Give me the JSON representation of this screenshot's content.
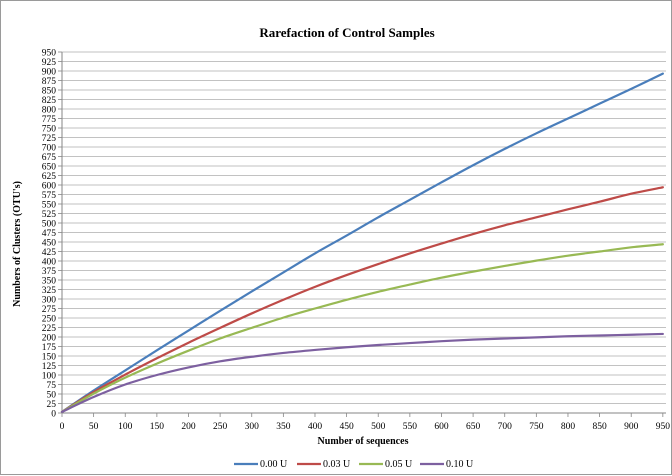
{
  "chart_data": {
    "type": "line",
    "title": "Rarefaction of Control Samples",
    "xlabel": "Number of sequences",
    "ylabel": "Numbers of Clusters (OTU's)",
    "xlim": [
      0,
      955
    ],
    "ylim": [
      0,
      950
    ],
    "x_ticks": [
      0,
      50,
      100,
      150,
      200,
      250,
      300,
      350,
      400,
      450,
      500,
      550,
      600,
      650,
      700,
      750,
      800,
      850,
      900,
      950
    ],
    "y_ticks": [
      0,
      25,
      50,
      75,
      100,
      125,
      150,
      175,
      200,
      225,
      250,
      275,
      300,
      325,
      350,
      375,
      400,
      425,
      450,
      475,
      500,
      525,
      550,
      575,
      600,
      625,
      650,
      675,
      700,
      725,
      750,
      775,
      800,
      825,
      850,
      875,
      900,
      925,
      950
    ],
    "grid": "horizontal",
    "legend_position": "bottom",
    "x": [
      0,
      50,
      100,
      150,
      200,
      250,
      300,
      350,
      400,
      450,
      500,
      550,
      600,
      650,
      700,
      750,
      800,
      850,
      900,
      950
    ],
    "series": [
      {
        "name": "0.00 U",
        "color": "#4a7ebb",
        "values": [
          3,
          59,
          112,
          165,
          217,
          269,
          320,
          370,
          420,
          467,
          515,
          561,
          607,
          652,
          695,
          736,
          775,
          814,
          853,
          893
        ]
      },
      {
        "name": "0.03 U",
        "color": "#be4b48",
        "values": [
          3,
          55,
          101,
          144,
          185,
          224,
          262,
          298,
          332,
          363,
          392,
          420,
          446,
          471,
          494,
          515,
          536,
          556,
          577,
          594
        ]
      },
      {
        "name": "0.05 U",
        "color": "#98b954",
        "values": [
          3,
          51,
          93,
          130,
          164,
          196,
          224,
          251,
          275,
          298,
          319,
          338,
          356,
          372,
          387,
          401,
          414,
          425,
          436,
          444
        ]
      },
      {
        "name": "0.10 U",
        "color": "#7d60a0",
        "values": [
          3,
          42,
          75,
          100,
          120,
          136,
          148,
          158,
          166,
          173,
          179,
          184,
          189,
          193,
          196,
          199,
          202,
          204,
          206,
          208
        ]
      }
    ]
  }
}
